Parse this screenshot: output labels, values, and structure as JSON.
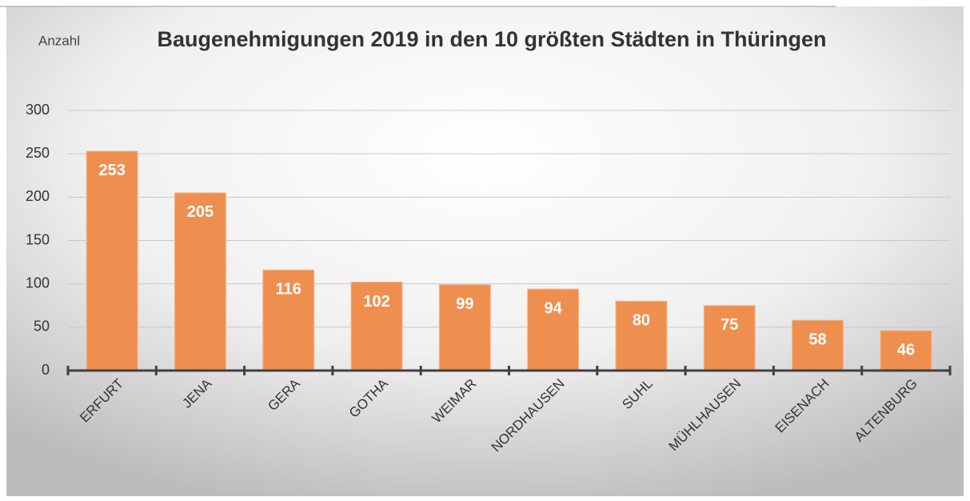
{
  "chart_data": {
    "type": "bar",
    "title": "Baugenehmigungen 2019 in den 10 größten Städten in Thüringen",
    "y_label": "Anzahl",
    "categories": [
      "ERFURT",
      "JENA",
      "GERA",
      "GOTHA",
      "WEIMAR",
      "NORDHAUSEN",
      "SUHL",
      "MÜHLHAUSEN",
      "EISENACH",
      "ALTENBURG"
    ],
    "values": [
      253,
      205,
      116,
      102,
      99,
      94,
      80,
      75,
      58,
      46
    ],
    "color": "#ef8f4f",
    "ylim": [
      0,
      300
    ],
    "yticks": [
      0,
      50,
      100,
      150,
      200,
      250,
      300
    ],
    "grid": true
  }
}
